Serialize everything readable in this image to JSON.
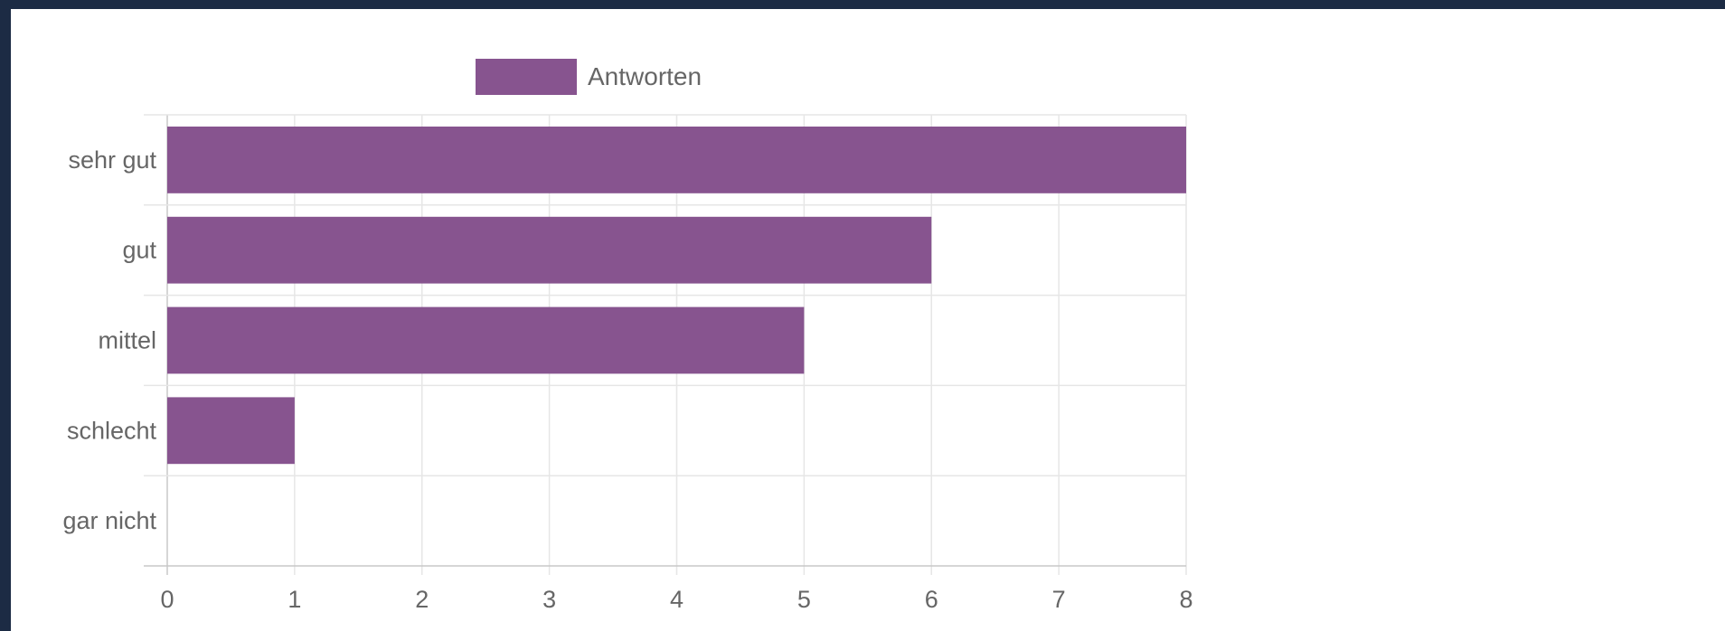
{
  "chart_data": {
    "type": "bar",
    "orientation": "horizontal",
    "categories": [
      "sehr gut",
      "gut",
      "mittel",
      "schlecht",
      "gar nicht"
    ],
    "series": [
      {
        "name": "Antworten",
        "values": [
          8,
          6,
          5,
          1,
          0
        ],
        "color": "#87548f"
      }
    ],
    "xlim": [
      0,
      8
    ],
    "x_ticks": [
      "0",
      "1",
      "2",
      "3",
      "4",
      "5",
      "6",
      "7",
      "8"
    ],
    "grid": true,
    "legend": {
      "position": "top",
      "entries": [
        "Antworten"
      ]
    }
  }
}
